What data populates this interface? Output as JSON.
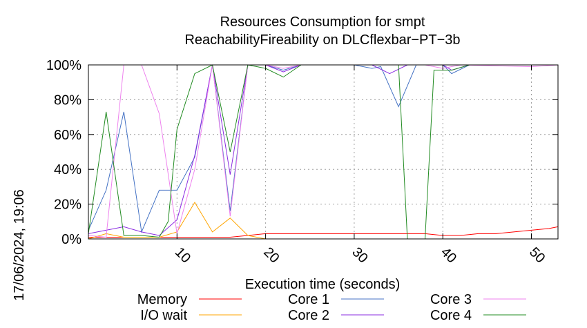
{
  "chart_data": {
    "type": "line",
    "title_line1": "Resources Consumption for smpt",
    "title_line2": "ReachabilityFireability on DLCflexbar−PT−3b",
    "xlabel": "Execution time (seconds)",
    "timestamp": "17/06/2024, 19:06",
    "xlim": [
      0,
      53
    ],
    "ylim": [
      0,
      100
    ],
    "x_ticks": [
      {
        "v": 10,
        "label": "10"
      },
      {
        "v": 20,
        "label": "20"
      },
      {
        "v": 30,
        "label": "30"
      },
      {
        "v": 40,
        "label": "40"
      },
      {
        "v": 50,
        "label": "50"
      }
    ],
    "y_ticks": [
      {
        "v": 0,
        "label": "0%"
      },
      {
        "v": 20,
        "label": "20%"
      },
      {
        "v": 40,
        "label": "40%"
      },
      {
        "v": 60,
        "label": "60%"
      },
      {
        "v": 80,
        "label": "80%"
      },
      {
        "v": 100,
        "label": "100%"
      }
    ],
    "grid": true,
    "legend_placement": "bottom",
    "series": [
      {
        "name": "Memory",
        "color": "#ff0000",
        "points": [
          [
            0,
            1
          ],
          [
            2,
            1
          ],
          [
            4,
            1
          ],
          [
            6,
            1
          ],
          [
            8,
            1
          ],
          [
            10,
            1
          ],
          [
            12,
            1
          ],
          [
            14,
            1
          ],
          [
            16,
            1
          ],
          [
            18,
            2
          ],
          [
            20,
            3
          ],
          [
            22,
            3
          ],
          [
            24,
            3
          ],
          [
            26,
            3
          ],
          [
            28,
            3
          ],
          [
            30,
            3
          ],
          [
            32,
            3
          ],
          [
            34,
            3
          ],
          [
            36,
            3
          ],
          [
            38,
            3
          ],
          [
            40,
            2
          ],
          [
            42,
            2
          ],
          [
            44,
            3
          ],
          [
            46,
            3
          ],
          [
            48,
            4
          ],
          [
            50,
            5
          ],
          [
            52,
            6
          ],
          [
            53,
            7
          ]
        ]
      },
      {
        "name": "I/O wait",
        "color": "#ffa500",
        "points": [
          [
            0,
            0
          ],
          [
            2,
            3
          ],
          [
            4,
            1
          ],
          [
            6,
            1
          ],
          [
            8,
            1
          ],
          [
            10,
            4
          ],
          [
            12,
            21
          ],
          [
            14,
            4
          ],
          [
            16,
            12
          ],
          [
            18,
            2
          ],
          [
            20,
            0
          ],
          [
            53,
            0
          ]
        ]
      },
      {
        "name": "Core 1",
        "color": "#4472c4",
        "points": [
          [
            0,
            5
          ],
          [
            2,
            28
          ],
          [
            4,
            73
          ],
          [
            6,
            4
          ],
          [
            8,
            28
          ],
          [
            10,
            28
          ],
          [
            12,
            47
          ],
          [
            14,
            100
          ],
          [
            16,
            16
          ],
          [
            18,
            100
          ],
          [
            20,
            100
          ],
          [
            22,
            97
          ],
          [
            24,
            100
          ],
          [
            26,
            100
          ],
          [
            28,
            100
          ],
          [
            30,
            100
          ],
          [
            32,
            98
          ],
          [
            33,
            99
          ],
          [
            35,
            76
          ],
          [
            37,
            100
          ],
          [
            38,
            100
          ],
          [
            40,
            100
          ],
          [
            41,
            95
          ],
          [
            43,
            100
          ],
          [
            53,
            100
          ]
        ]
      },
      {
        "name": "Core 2",
        "color": "#8a2be2",
        "points": [
          [
            0,
            3
          ],
          [
            2,
            5
          ],
          [
            4,
            7
          ],
          [
            6,
            4
          ],
          [
            8,
            2
          ],
          [
            10,
            11
          ],
          [
            12,
            48
          ],
          [
            14,
            100
          ],
          [
            16,
            37
          ],
          [
            18,
            100
          ],
          [
            20,
            100
          ],
          [
            22,
            96
          ],
          [
            24,
            100
          ],
          [
            30,
            100
          ],
          [
            32,
            100
          ],
          [
            34,
            95
          ],
          [
            36,
            100
          ],
          [
            38,
            100
          ],
          [
            40,
            100
          ],
          [
            41,
            97
          ],
          [
            43,
            100
          ],
          [
            53,
            100
          ]
        ]
      },
      {
        "name": "Core 3",
        "color": "#ee82ee",
        "points": [
          [
            0,
            2
          ],
          [
            2,
            1
          ],
          [
            4,
            100
          ],
          [
            6,
            100
          ],
          [
            8,
            72
          ],
          [
            10,
            3
          ],
          [
            12,
            40
          ],
          [
            14,
            100
          ],
          [
            16,
            13
          ],
          [
            18,
            100
          ],
          [
            20,
            100
          ],
          [
            22,
            98
          ],
          [
            24,
            100
          ],
          [
            38,
            100
          ],
          [
            40,
            98
          ],
          [
            42,
            100
          ],
          [
            50,
            99
          ],
          [
            53,
            100
          ]
        ]
      },
      {
        "name": "Core 4",
        "color": "#228b22",
        "points": [
          [
            0,
            3
          ],
          [
            2,
            73
          ],
          [
            4,
            2
          ],
          [
            6,
            2
          ],
          [
            8,
            1
          ],
          [
            9,
            10
          ],
          [
            10,
            63
          ],
          [
            12,
            95
          ],
          [
            14,
            100
          ],
          [
            16,
            50
          ],
          [
            18,
            100
          ],
          [
            20,
            98
          ],
          [
            22,
            93
          ],
          [
            24,
            100
          ],
          [
            34,
            100
          ],
          [
            35,
            100
          ],
          [
            36,
            0
          ],
          [
            38,
            0
          ],
          [
            39,
            97
          ],
          [
            41,
            97
          ],
          [
            43,
            100
          ],
          [
            53,
            100
          ]
        ]
      }
    ]
  }
}
